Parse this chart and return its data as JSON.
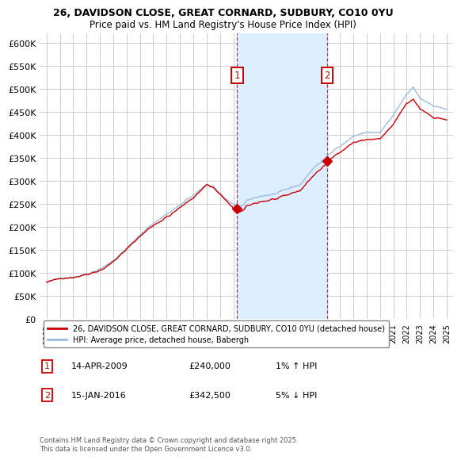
{
  "title1": "26, DAVIDSON CLOSE, GREAT CORNARD, SUDBURY, CO10 0YU",
  "title2": "Price paid vs. HM Land Registry's House Price Index (HPI)",
  "ylim": [
    0,
    620000
  ],
  "yticks": [
    0,
    50000,
    100000,
    150000,
    200000,
    250000,
    300000,
    350000,
    400000,
    450000,
    500000,
    550000,
    600000
  ],
  "ytick_labels": [
    "£0",
    "£50K",
    "£100K",
    "£150K",
    "£200K",
    "£250K",
    "£300K",
    "£350K",
    "£400K",
    "£450K",
    "£500K",
    "£550K",
    "£600K"
  ],
  "xlim_left": 1994.5,
  "xlim_right": 2025.5,
  "xtick_start": 1995,
  "xtick_end": 2025,
  "sale1_year": 2009.29,
  "sale1_price": 240000,
  "sale1_date": "14-APR-2009",
  "sale1_label": "1",
  "sale1_pct": "1% ↑ HPI",
  "sale2_year": 2016.04,
  "sale2_price": 342500,
  "sale2_date": "15-JAN-2016",
  "sale2_label": "2",
  "sale2_pct": "5% ↓ HPI",
  "legend_line1": "26, DAVIDSON CLOSE, GREAT CORNARD, SUDBURY, CO10 0YU (detached house)",
  "legend_line2": "HPI: Average price, detached house, Babergh",
  "footnote": "Contains HM Land Registry data © Crown copyright and database right 2025.\nThis data is licensed under the Open Government Licence v3.0.",
  "color_red": "#cc0000",
  "color_blue": "#99bbdd",
  "color_shade": "#ddeeff",
  "color_grid": "#cccccc",
  "color_bg": "#ffffff"
}
